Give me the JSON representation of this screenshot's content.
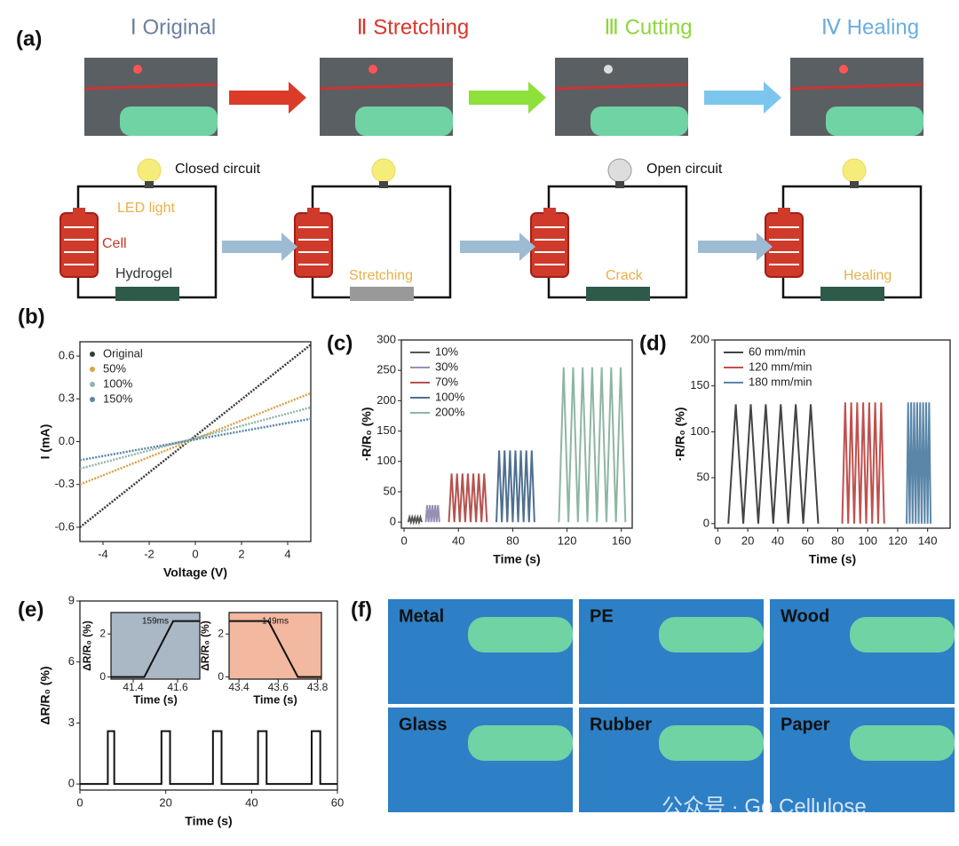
{
  "panel_labels": [
    "(a)",
    "(b)",
    "(c)",
    "(d)",
    "(e)",
    "(f)"
  ],
  "panel_a": {
    "stages": [
      "Ⅰ Original",
      "Ⅱ Stretching",
      "Ⅲ Cutting",
      "Ⅳ Healing"
    ],
    "circuit_labels": [
      "Closed circuit",
      "LED light",
      "Cell",
      "Hydrogel",
      "Stretching",
      "Open circuit",
      "Crack",
      "Healing"
    ]
  },
  "panel_f": {
    "materials": [
      "Metal",
      "PE",
      "Wood",
      "Glass",
      "Rubber",
      "Paper"
    ],
    "watermark": "公众号 · Go Cellulose"
  },
  "chart_data": [
    {
      "type": "line",
      "xlabel": "Voltage (V)",
      "ylabel": "I (mA)",
      "x": [
        -5,
        5
      ],
      "xlim": [
        -5,
        5
      ],
      "ylim": [
        -0.7,
        0.7
      ],
      "xticks": [
        -4,
        -2,
        0,
        2,
        4
      ],
      "yticks": [
        0.6,
        0.3,
        {
          "value": 0,
          "label": "0.0"
        },
        -0.3,
        -0.6
      ],
      "legend": "dots",
      "series": [
        {
          "name": "Original",
          "color": "#3a3a3a",
          "values": [
            -0.6,
            0.68
          ]
        },
        {
          "name": "50%",
          "color": "#d9a14a",
          "values": [
            -0.3,
            0.34
          ]
        },
        {
          "name": "100%",
          "color": "#8fb5a8",
          "values": [
            -0.19,
            0.24
          ]
        },
        {
          "name": "150%",
          "color": "#5b86a8",
          "values": [
            -0.13,
            0.16
          ]
        }
      ]
    },
    {
      "type": "line",
      "xlabel": "Time (s)",
      "ylabel": "·R/R₀ (%)",
      "xlim": [
        -2,
        168
      ],
      "ylim": [
        -10,
        300
      ],
      "xticks": [
        0,
        40,
        80,
        120,
        160
      ],
      "yticks": [
        0,
        50,
        100,
        150,
        200,
        250,
        300
      ],
      "legend": "lines",
      "series": [
        {
          "name": "10%",
          "color": "#555555",
          "x": [
            3,
            4,
            5,
            6,
            7,
            8,
            9,
            10,
            11,
            12,
            13
          ],
          "values": [
            0,
            8,
            0,
            8,
            0,
            8,
            0,
            8,
            0,
            8,
            0
          ]
        },
        {
          "name": "30%",
          "color": "#9a8fb5",
          "x": [
            16,
            17,
            18,
            19,
            20,
            21,
            22,
            23,
            24,
            25,
            26
          ],
          "values": [
            0,
            28,
            0,
            28,
            0,
            28,
            0,
            28,
            0,
            28,
            0
          ]
        },
        {
          "name": "70%",
          "color": "#b5524f",
          "x": [
            33,
            35,
            37,
            39,
            41,
            43,
            45,
            47,
            49,
            51,
            53,
            55,
            57,
            59,
            61
          ],
          "values": [
            0,
            80,
            0,
            80,
            0,
            80,
            0,
            80,
            0,
            80,
            0,
            80,
            0,
            80,
            0
          ]
        },
        {
          "name": "100%",
          "color": "#4f6f8f",
          "x": [
            68,
            70,
            72,
            74,
            76,
            78,
            80,
            82,
            84,
            86,
            88,
            90,
            92,
            94,
            96
          ],
          "values": [
            0,
            118,
            0,
            118,
            0,
            118,
            0,
            118,
            0,
            118,
            0,
            118,
            0,
            118,
            0
          ]
        },
        {
          "name": "200%",
          "color": "#8fb5a3",
          "x": [
            114,
            117.5,
            121,
            124.5,
            128,
            131.5,
            135,
            138.5,
            142,
            145.5,
            149,
            152.5,
            156,
            159.5,
            163
          ],
          "values": [
            0,
            255,
            0,
            255,
            0,
            255,
            0,
            255,
            0,
            255,
            0,
            255,
            0,
            255,
            0
          ]
        }
      ]
    },
    {
      "type": "line",
      "xlabel": "Time (s)",
      "ylabel": "·R/R₀ (%)",
      "xlim": [
        -2,
        155
      ],
      "ylim": [
        -5,
        200
      ],
      "xticks": [
        0,
        20,
        40,
        60,
        80,
        100,
        120,
        140
      ],
      "yticks": [
        0,
        50,
        100,
        150,
        200
      ],
      "legend": "lines",
      "series": [
        {
          "name": "60 mm/min",
          "color": "#444444",
          "x": [
            7,
            12,
            17,
            22,
            27,
            32,
            37,
            42,
            47,
            52,
            57,
            62,
            67
          ],
          "values": [
            0,
            130,
            0,
            130,
            0,
            130,
            0,
            130,
            0,
            130,
            0,
            130,
            0
          ]
        },
        {
          "name": "120 mm/min",
          "color": "#c0504d",
          "x": [
            83,
            85,
            87,
            89,
            91,
            93,
            95,
            97,
            99,
            101,
            103,
            105,
            107,
            109,
            111
          ],
          "values": [
            0,
            132,
            0,
            132,
            0,
            132,
            0,
            132,
            0,
            132,
            0,
            132,
            0,
            132,
            0
          ]
        },
        {
          "name": "180 mm/min",
          "color": "#5b86a8",
          "x": [
            126,
            127,
            128,
            129,
            130,
            131,
            132,
            133,
            134,
            135,
            136,
            137,
            138,
            139,
            140,
            141,
            142
          ],
          "values": [
            0,
            132,
            0,
            132,
            0,
            132,
            0,
            132,
            0,
            132,
            0,
            132,
            0,
            132,
            0,
            132,
            0
          ]
        }
      ]
    },
    {
      "type": "line",
      "xlabel": "Time (s)",
      "ylabel": "ΔR/R₀ (%)",
      "xlim": [
        0,
        60
      ],
      "ylim": [
        -0.3,
        9
      ],
      "xticks": [
        0,
        20,
        40,
        60
      ],
      "yticks": [
        0,
        3,
        6,
        9
      ],
      "series": [
        {
          "color": "#111111",
          "x": [
            0,
            6.5,
            6.5,
            8,
            8,
            19,
            19,
            21,
            21,
            31,
            31,
            33,
            33,
            41.5,
            41.5,
            43.5,
            43.5,
            54,
            54,
            56,
            56,
            60
          ],
          "values": [
            0,
            0,
            2.6,
            2.6,
            0,
            0,
            2.6,
            2.6,
            0,
            0,
            2.6,
            2.6,
            0,
            0,
            2.6,
            2.6,
            0,
            0,
            2.6,
            2.6,
            0,
            0
          ]
        }
      ]
    },
    {
      "type": "line",
      "xlabel": "Time (s)",
      "ylabel": "ΔR/R₀ (%)",
      "annotation": "159ms",
      "background": "#aab7c4",
      "xlim": [
        41.3,
        41.7
      ],
      "ylim": [
        -0.1,
        3
      ],
      "xticks": [
        41.4,
        41.6
      ],
      "yticks": [
        0,
        2
      ],
      "series": [
        {
          "color": "#111111",
          "x": [
            41.3,
            41.45,
            41.58,
            41.7
          ],
          "values": [
            0,
            0,
            2.6,
            2.6
          ]
        }
      ]
    },
    {
      "type": "line",
      "xlabel": "Time (s)",
      "ylabel": "ΔR/R₀ (%)",
      "annotation": "149ms",
      "background": "#f2b8a0",
      "xlim": [
        43.35,
        43.82
      ],
      "ylim": [
        -0.1,
        3
      ],
      "xticks": [
        43.4,
        43.6,
        43.8
      ],
      "yticks": [
        0,
        2
      ],
      "series": [
        {
          "color": "#111111",
          "x": [
            43.35,
            43.55,
            43.7,
            43.82
          ],
          "values": [
            2.6,
            2.6,
            0,
            0
          ]
        }
      ]
    }
  ]
}
